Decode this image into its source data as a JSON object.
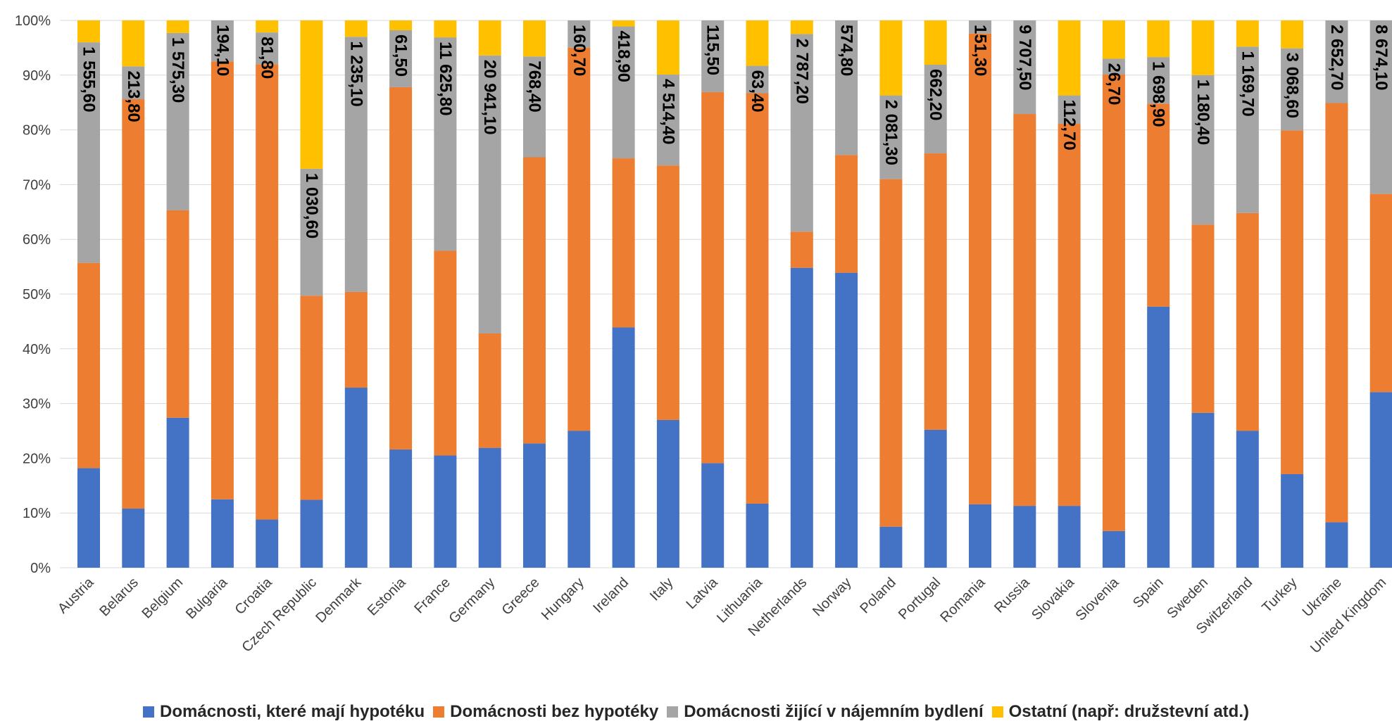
{
  "chart_data": {
    "type": "bar",
    "stacked": true,
    "percent": true,
    "ylim": [
      0,
      100
    ],
    "yticks": [
      "0%",
      "10%",
      "20%",
      "30%",
      "40%",
      "50%",
      "60%",
      "70%",
      "80%",
      "90%",
      "100%"
    ],
    "grid": true,
    "legend_position": "bottom",
    "categories": [
      "Austria",
      "Belarus",
      "Belgium",
      "Bulgaria",
      "Croatia",
      "Czech Republic",
      "Denmark",
      "Estonia",
      "France",
      "Germany",
      "Greece",
      "Hungary",
      "Ireland",
      "Italy",
      "Latvia",
      "Lithuania",
      "Netherlands",
      "Norway",
      "Poland",
      "Portugal",
      "Romania",
      "Russia",
      "Slovakia",
      "Slovenia",
      "Spain",
      "Sweden",
      "Switzerland",
      "Turkey",
      "Ukraine",
      "United Kingdom"
    ],
    "series": [
      {
        "name": "Domácnosti, které mají hypotéku",
        "color": "#4472C4",
        "values": [
          18.2,
          10.8,
          27.4,
          12.5,
          8.8,
          12.4,
          32.9,
          21.6,
          20.5,
          21.9,
          22.7,
          25.0,
          43.9,
          27.0,
          19.1,
          11.7,
          54.8,
          53.9,
          7.5,
          25.2,
          11.6,
          11.3,
          11.3,
          6.7,
          47.7,
          28.3,
          25.0,
          17.1,
          8.3,
          32.1
        ]
      },
      {
        "name": "Domácnosti bez hypotéky",
        "color": "#ED7D31",
        "values": [
          37.5,
          74.8,
          37.9,
          80.0,
          83.2,
          37.3,
          17.5,
          66.2,
          37.4,
          20.9,
          52.3,
          70.0,
          30.9,
          46.5,
          67.8,
          75.0,
          6.6,
          21.5,
          63.5,
          50.5,
          86.0,
          71.6,
          69.8,
          83.4,
          37.1,
          34.4,
          39.8,
          62.8,
          76.6,
          36.2
        ]
      },
      {
        "name": "Domácnosti žijící v nájemním bydlení",
        "color": "#A5A5A5",
        "values": [
          40.3,
          6.0,
          32.4,
          7.5,
          5.8,
          23.2,
          46.6,
          10.4,
          39.0,
          50.8,
          18.4,
          5.0,
          24.1,
          16.6,
          13.1,
          5.0,
          36.1,
          24.6,
          15.3,
          16.2,
          2.4,
          17.1,
          5.2,
          2.9,
          8.5,
          27.3,
          30.4,
          15.0,
          15.1,
          31.7
        ]
      },
      {
        "name": "Ostatní (např: družstevní atd.)",
        "color": "#FFC000",
        "values": [
          4.0,
          8.4,
          2.3,
          0.0,
          2.2,
          27.1,
          3.0,
          1.8,
          3.1,
          6.4,
          6.6,
          0.0,
          1.1,
          9.9,
          0.0,
          8.3,
          2.5,
          0.0,
          13.7,
          8.1,
          0.0,
          0.0,
          13.7,
          7.0,
          6.7,
          10.0,
          4.8,
          5.1,
          0.0,
          0.0
        ]
      }
    ],
    "data_labels": [
      "1 555,60",
      "213,80",
      "1 575,30",
      "194,10",
      "81,80",
      "1 030,60",
      "1 235,10",
      "61,50",
      "11 625,80",
      "20 941,10",
      "768,40",
      "160,70",
      "418,90",
      "4 514,40",
      "115,50",
      "63,40",
      "2 787,20",
      "574,80",
      "2 081,30",
      "662,20",
      "151,30",
      "9 707,50",
      "112,70",
      "26,70",
      "1 698,90",
      "1 180,40",
      "1 169,70",
      "3 068,60",
      "2 652,70",
      "8 674,10"
    ]
  }
}
